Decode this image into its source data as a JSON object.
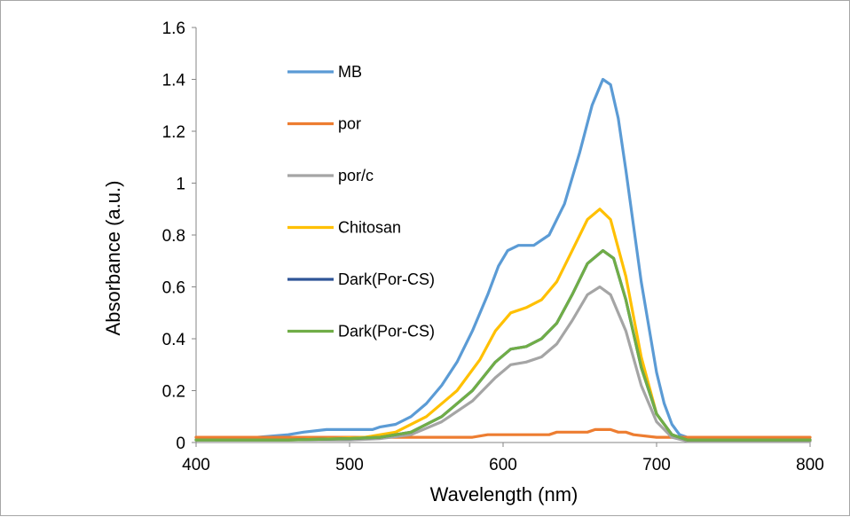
{
  "chart_data": {
    "type": "line",
    "xlabel": "Wavelength (nm)",
    "ylabel": "Absorbance (a.u.)",
    "xlim": [
      400,
      800
    ],
    "ylim": [
      0,
      1.6
    ],
    "xticks": [
      "400",
      "500",
      "600",
      "700",
      "800"
    ],
    "yticks": [
      "0",
      "0.2",
      "0.4",
      "0.6",
      "0.8",
      "1",
      "1.2",
      "1.4",
      "1.6"
    ],
    "grid": false,
    "legend_position": "upper-left",
    "series": [
      {
        "name": "MB",
        "color": "#5b9bd5",
        "points": [
          [
            400,
            0.02
          ],
          [
            440,
            0.02
          ],
          [
            460,
            0.03
          ],
          [
            470,
            0.04
          ],
          [
            485,
            0.05
          ],
          [
            500,
            0.05
          ],
          [
            515,
            0.05
          ],
          [
            520,
            0.06
          ],
          [
            530,
            0.07
          ],
          [
            540,
            0.1
          ],
          [
            550,
            0.15
          ],
          [
            560,
            0.22
          ],
          [
            570,
            0.31
          ],
          [
            580,
            0.43
          ],
          [
            590,
            0.57
          ],
          [
            597,
            0.68
          ],
          [
            603,
            0.74
          ],
          [
            610,
            0.76
          ],
          [
            620,
            0.76
          ],
          [
            630,
            0.8
          ],
          [
            640,
            0.92
          ],
          [
            650,
            1.12
          ],
          [
            658,
            1.3
          ],
          [
            665,
            1.4
          ],
          [
            670,
            1.38
          ],
          [
            675,
            1.25
          ],
          [
            680,
            1.05
          ],
          [
            690,
            0.62
          ],
          [
            700,
            0.27
          ],
          [
            705,
            0.15
          ],
          [
            710,
            0.07
          ],
          [
            715,
            0.03
          ],
          [
            720,
            0.02
          ],
          [
            740,
            0.01
          ],
          [
            800,
            0.01
          ]
        ]
      },
      {
        "name": "por",
        "color": "#ed7d31",
        "points": [
          [
            400,
            0.02
          ],
          [
            580,
            0.02
          ],
          [
            590,
            0.03
          ],
          [
            630,
            0.03
          ],
          [
            635,
            0.04
          ],
          [
            655,
            0.04
          ],
          [
            660,
            0.05
          ],
          [
            670,
            0.05
          ],
          [
            675,
            0.04
          ],
          [
            680,
            0.04
          ],
          [
            685,
            0.03
          ],
          [
            700,
            0.02
          ],
          [
            800,
            0.02
          ]
        ]
      },
      {
        "name": "por/c",
        "color": "#a5a5a5",
        "points": [
          [
            400,
            0.01
          ],
          [
            450,
            0.01
          ],
          [
            480,
            0.01
          ],
          [
            500,
            0.01
          ],
          [
            520,
            0.015
          ],
          [
            540,
            0.03
          ],
          [
            560,
            0.08
          ],
          [
            580,
            0.16
          ],
          [
            595,
            0.25
          ],
          [
            605,
            0.3
          ],
          [
            615,
            0.31
          ],
          [
            625,
            0.33
          ],
          [
            635,
            0.38
          ],
          [
            645,
            0.47
          ],
          [
            655,
            0.57
          ],
          [
            663,
            0.6
          ],
          [
            670,
            0.57
          ],
          [
            680,
            0.43
          ],
          [
            690,
            0.22
          ],
          [
            700,
            0.08
          ],
          [
            710,
            0.02
          ],
          [
            720,
            0.005
          ],
          [
            800,
            0.005
          ]
        ]
      },
      {
        "name": "Chitosan",
        "color": "#ffc000",
        "points": [
          [
            400,
            0.01
          ],
          [
            460,
            0.01
          ],
          [
            490,
            0.015
          ],
          [
            510,
            0.02
          ],
          [
            530,
            0.04
          ],
          [
            550,
            0.1
          ],
          [
            570,
            0.2
          ],
          [
            585,
            0.32
          ],
          [
            595,
            0.43
          ],
          [
            605,
            0.5
          ],
          [
            615,
            0.52
          ],
          [
            625,
            0.55
          ],
          [
            635,
            0.62
          ],
          [
            645,
            0.74
          ],
          [
            655,
            0.86
          ],
          [
            663,
            0.9
          ],
          [
            670,
            0.86
          ],
          [
            680,
            0.64
          ],
          [
            690,
            0.33
          ],
          [
            700,
            0.11
          ],
          [
            710,
            0.03
          ],
          [
            720,
            0.01
          ],
          [
            800,
            0.01
          ]
        ]
      },
      {
        "name": "Dark(Por-CS)",
        "color": "#2f5597",
        "points": [
          [
            400,
            0.01
          ],
          [
            460,
            0.01
          ],
          [
            500,
            0.015
          ],
          [
            520,
            0.02
          ],
          [
            540,
            0.04
          ],
          [
            560,
            0.1
          ],
          [
            580,
            0.2
          ],
          [
            595,
            0.31
          ],
          [
            605,
            0.36
          ],
          [
            615,
            0.37
          ],
          [
            625,
            0.4
          ],
          [
            635,
            0.46
          ],
          [
            645,
            0.57
          ],
          [
            655,
            0.69
          ],
          [
            665,
            0.74
          ],
          [
            672,
            0.71
          ],
          [
            680,
            0.55
          ],
          [
            690,
            0.29
          ],
          [
            700,
            0.11
          ],
          [
            710,
            0.03
          ],
          [
            720,
            0.01
          ],
          [
            800,
            0.01
          ]
        ]
      },
      {
        "name": "Dark(Por-CS)",
        "color": "#70ad47",
        "points": [
          [
            400,
            0.01
          ],
          [
            460,
            0.01
          ],
          [
            500,
            0.015
          ],
          [
            520,
            0.02
          ],
          [
            540,
            0.04
          ],
          [
            560,
            0.1
          ],
          [
            580,
            0.2
          ],
          [
            595,
            0.31
          ],
          [
            605,
            0.36
          ],
          [
            615,
            0.37
          ],
          [
            625,
            0.4
          ],
          [
            635,
            0.46
          ],
          [
            645,
            0.57
          ],
          [
            655,
            0.69
          ],
          [
            665,
            0.74
          ],
          [
            672,
            0.71
          ],
          [
            680,
            0.55
          ],
          [
            690,
            0.29
          ],
          [
            700,
            0.11
          ],
          [
            710,
            0.03
          ],
          [
            720,
            0.01
          ],
          [
            800,
            0.01
          ]
        ]
      }
    ]
  }
}
